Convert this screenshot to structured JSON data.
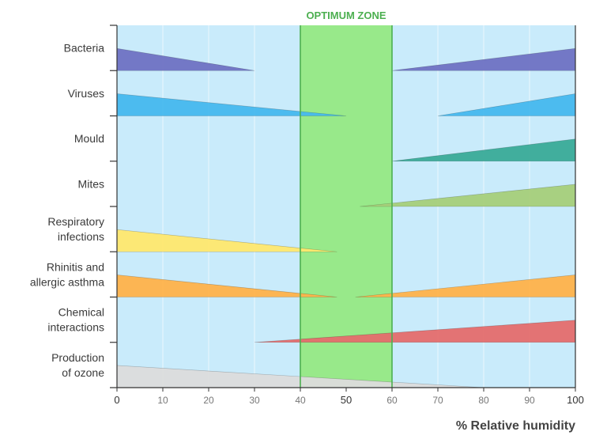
{
  "chart_data": {
    "type": "area",
    "xlabel": "% Relative humidity",
    "xlim": [
      0,
      100
    ],
    "xticks": [
      0,
      10,
      20,
      30,
      40,
      50,
      60,
      70,
      80,
      90,
      100
    ],
    "grid": true,
    "optimum_zone": {
      "label": "OPTIMUM ZONE",
      "range": [
        40,
        60
      ],
      "color": "#98e98a"
    },
    "colors": {
      "background": "#c9ebfb",
      "zone_border": "#4caf50",
      "zone_label": "#4caf50"
    },
    "series": [
      {
        "name": "Bacteria",
        "color": "#6f72c3",
        "wedges": [
          {
            "x": [
              0,
              30
            ],
            "height": [
              1.0,
              0
            ]
          },
          {
            "x": [
              60,
              100
            ],
            "height": [
              0,
              1.0
            ]
          }
        ]
      },
      {
        "name": "Viruses",
        "color": "#46b8ee",
        "wedges": [
          {
            "x": [
              0,
              50
            ],
            "height": [
              1.0,
              0
            ]
          },
          {
            "x": [
              70,
              100
            ],
            "height": [
              0,
              1.0
            ]
          }
        ]
      },
      {
        "name": "Mould",
        "color": "#3aab98",
        "wedges": [
          {
            "x": [
              60,
              100
            ],
            "height": [
              0,
              1.0
            ]
          }
        ]
      },
      {
        "name": "Mites",
        "color": "#a6cf7a",
        "wedges": [
          {
            "x": [
              53,
              100
            ],
            "height": [
              0,
              1.0
            ]
          }
        ]
      },
      {
        "name": "Respiratory infections",
        "color": "#ffe86e",
        "wedges": [
          {
            "x": [
              0,
              48
            ],
            "height": [
              1.0,
              0
            ]
          }
        ]
      },
      {
        "name": "Rhinitis and allergic asthma",
        "color": "#ffb24a",
        "wedges": [
          {
            "x": [
              0,
              48
            ],
            "height": [
              1.0,
              0
            ]
          },
          {
            "x": [
              52,
              100
            ],
            "height": [
              0,
              1.0
            ]
          }
        ]
      },
      {
        "name": "Chemical interactions",
        "color": "#e56d6d",
        "wedges": [
          {
            "x": [
              30,
              100
            ],
            "height": [
              0,
              1.0
            ]
          }
        ]
      },
      {
        "name": "Production of ozone",
        "color": "#dcdcdc",
        "wedges": [
          {
            "x": [
              0,
              80
            ],
            "height": [
              1.0,
              0
            ]
          }
        ]
      }
    ],
    "labels": [
      [
        "Bacteria"
      ],
      [
        "Viruses"
      ],
      [
        "Mould"
      ],
      [
        "Mites"
      ],
      [
        "Respiratory",
        "infections"
      ],
      [
        "Rhinitis and",
        "allergic asthma"
      ],
      [
        "Chemical",
        "interactions"
      ],
      [
        "Production",
        "of ozone"
      ]
    ]
  }
}
